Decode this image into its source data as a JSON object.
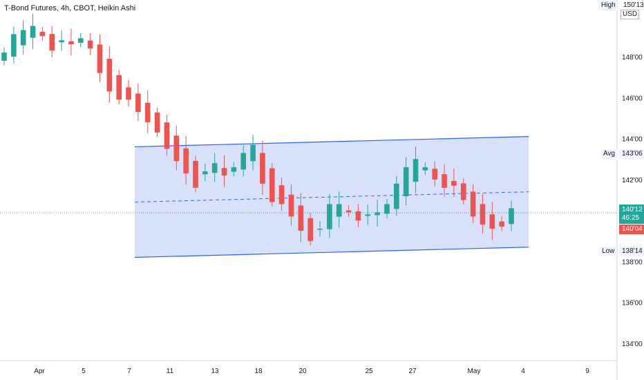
{
  "header": {
    "title": "T-Bond Futures, 4h, CBOT, Heikin Ashi"
  },
  "price_axis": {
    "currency": "USD",
    "high_label": "High",
    "high_value": "150'13",
    "avg_label": "Avg",
    "avg_value": "143'06",
    "low_label": "Low",
    "low_value": "138'14",
    "last_price": "140'12",
    "countdown": "46:25",
    "prev_close": "140'04"
  },
  "colors": {
    "up": "#26a69a",
    "down": "#ef5350",
    "channel_line": "#2962ff",
    "channel_fill": "#c9d7f8",
    "last_price_line": "#26a69a"
  },
  "chart_data": {
    "type": "candlestick",
    "title": "T-Bond Futures, 4h, CBOT, Heikin Ashi",
    "y_ticks": [
      "134'00",
      "136'00",
      "138'00",
      "140'00",
      "142'00",
      "144'00",
      "146'00",
      "148'00"
    ],
    "x_ticks": [
      "Apr",
      "5",
      "7",
      "11",
      "13",
      "18",
      "20",
      "25",
      "27",
      "May",
      "4",
      "9"
    ],
    "ylim": [
      133.0,
      151.0
    ],
    "candles_close": [
      148.2,
      149.1,
      149.3,
      149.5,
      149.0,
      148.3,
      148.8,
      148.6,
      148.9,
      148.4,
      147.2,
      146.3,
      145.9,
      145.9,
      145.3,
      144.8,
      144.3,
      143.5,
      142.9,
      142.3,
      141.6,
      142.4,
      142.8,
      142.2,
      142.6,
      143.3,
      143.7,
      141.8,
      140.9,
      140.8,
      140.2,
      139.5,
      139.0,
      139.6,
      140.8,
      140.8,
      140.4,
      140.0,
      140.3,
      140.4,
      140.8,
      141.8,
      142.6,
      143.0,
      142.6,
      142.0,
      141.6,
      141.7,
      141.0,
      140.2,
      139.8,
      139.6,
      139.7,
      140.6
    ],
    "channel": {
      "upper": {
        "from": [
          "Apr 7",
          143.6
        ],
        "to": [
          "May 4",
          144.1
        ]
      },
      "lower": {
        "from": [
          "Apr 7",
          138.2
        ],
        "to": [
          "May 4",
          138.7
        ]
      },
      "midline": {
        "from": [
          "Apr 7",
          140.9
        ],
        "to": [
          "May 4",
          141.4
        ]
      }
    },
    "last_price": 140.38,
    "grid": false,
    "legend": "none"
  }
}
